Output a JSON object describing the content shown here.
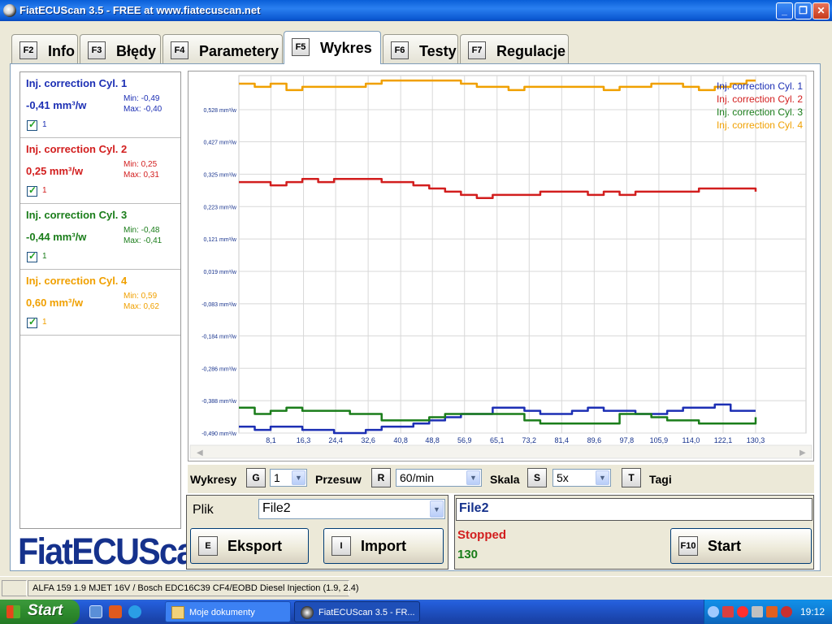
{
  "window": {
    "title": "FiatECUScan 3.5 - FREE at www.fiatecuscan.net",
    "controls": [
      "_",
      "❐",
      "✕"
    ]
  },
  "tabs": [
    {
      "key": "F2",
      "label": "Info",
      "active": false
    },
    {
      "key": "F3",
      "label": "Błędy",
      "active": false
    },
    {
      "key": "F4",
      "label": "Parametery",
      "active": false
    },
    {
      "key": "F5",
      "label": "Wykres",
      "active": true
    },
    {
      "key": "F6",
      "label": "Testy",
      "active": false
    },
    {
      "key": "F7",
      "label": "Regulacje",
      "active": false
    }
  ],
  "params": [
    {
      "name": "Inj. correction Cyl. 1",
      "value": "-0,41 mm³/w",
      "min": "Min: -0,49",
      "max": "Max: -0,40",
      "check": "1",
      "color": "#1c2fb4"
    },
    {
      "name": "Inj. correction Cyl. 2",
      "value": "0,25 mm³/w",
      "min": "Min: 0,25",
      "max": "Max: 0,31",
      "check": "1",
      "color": "#d21e1e"
    },
    {
      "name": "Inj. correction Cyl. 3",
      "value": "-0,44 mm³/w",
      "min": "Min: -0,48",
      "max": "Max: -0,41",
      "check": "1",
      "color": "#1a7d1a"
    },
    {
      "name": "Inj. correction Cyl. 4",
      "value": "0,60 mm³/w",
      "min": "Min: 0,59",
      "max": "Max: 0,62",
      "check": "1",
      "color": "#f0a000"
    }
  ],
  "logo_text": "FiatECUScan",
  "chart_data": {
    "type": "line",
    "y_ticks": [
      "0,528 mm³/w",
      "0,427 mm³/w",
      "0,325 mm³/w",
      "0,223 mm³/w",
      "0,121 mm³/w",
      "0,019 mm³/w",
      "-0,083 mm³/w",
      "-0,184 mm³/w",
      "-0,286 mm³/w",
      "-0,388 mm³/w",
      "-0,490 mm³/w"
    ],
    "y_tick_values": [
      0.528,
      0.427,
      0.325,
      0.223,
      0.121,
      0.019,
      -0.083,
      -0.184,
      -0.286,
      -0.388,
      -0.49
    ],
    "x_ticks": [
      "8,1",
      "16,3",
      "24,4",
      "32,6",
      "40,8",
      "48,8",
      "56,9",
      "65,1",
      "73,2",
      "81,4",
      "89,6",
      "97,8",
      "105,9",
      "114,0",
      "122,1",
      "130,3"
    ],
    "x_tick_values": [
      8.1,
      16.3,
      24.4,
      32.6,
      40.8,
      48.8,
      56.9,
      65.1,
      73.2,
      81.4,
      89.6,
      97.8,
      105.9,
      114.0,
      122.1,
      130.3
    ],
    "xlim": [
      0,
      130.3
    ],
    "ylim": [
      -0.49,
      0.61
    ],
    "grid": true,
    "legend_position": "top-right",
    "series": [
      {
        "name": "Inj. correction Cyl. 1",
        "color": "#1c2fb4",
        "x": [
          0,
          4,
          8,
          12,
          16,
          20,
          24,
          28,
          32,
          36,
          40,
          44,
          48,
          52,
          56,
          60,
          64,
          68,
          72,
          76,
          80,
          84,
          88,
          92,
          96,
          100,
          104,
          108,
          112,
          116,
          120,
          124,
          128,
          130.3
        ],
        "y": [
          -0.47,
          -0.48,
          -0.47,
          -0.47,
          -0.48,
          -0.48,
          -0.49,
          -0.49,
          -0.48,
          -0.47,
          -0.47,
          -0.46,
          -0.45,
          -0.44,
          -0.43,
          -0.43,
          -0.41,
          -0.41,
          -0.42,
          -0.43,
          -0.43,
          -0.42,
          -0.41,
          -0.42,
          -0.42,
          -0.43,
          -0.43,
          -0.42,
          -0.41,
          -0.41,
          -0.4,
          -0.42,
          -0.42,
          -0.42
        ]
      },
      {
        "name": "Inj. correction Cyl. 2",
        "color": "#d21e1e",
        "x": [
          0,
          4,
          8,
          12,
          16,
          20,
          24,
          28,
          32,
          36,
          40,
          44,
          48,
          52,
          56,
          60,
          64,
          68,
          72,
          76,
          80,
          84,
          88,
          92,
          96,
          100,
          104,
          108,
          112,
          116,
          120,
          124,
          128,
          130.3
        ],
        "y": [
          0.3,
          0.3,
          0.29,
          0.3,
          0.31,
          0.3,
          0.31,
          0.31,
          0.31,
          0.3,
          0.3,
          0.29,
          0.28,
          0.27,
          0.26,
          0.25,
          0.26,
          0.26,
          0.26,
          0.27,
          0.27,
          0.27,
          0.26,
          0.27,
          0.26,
          0.27,
          0.27,
          0.27,
          0.27,
          0.28,
          0.28,
          0.28,
          0.28,
          0.27
        ]
      },
      {
        "name": "Inj. correction Cyl. 3",
        "color": "#1a7d1a",
        "x": [
          0,
          4,
          8,
          12,
          16,
          20,
          24,
          28,
          32,
          36,
          40,
          44,
          48,
          52,
          56,
          60,
          64,
          68,
          72,
          76,
          80,
          84,
          88,
          92,
          96,
          100,
          104,
          108,
          112,
          116,
          120,
          124,
          128,
          130.3
        ],
        "y": [
          -0.41,
          -0.43,
          -0.42,
          -0.41,
          -0.42,
          -0.42,
          -0.42,
          -0.43,
          -0.43,
          -0.45,
          -0.45,
          -0.45,
          -0.44,
          -0.43,
          -0.43,
          -0.43,
          -0.43,
          -0.43,
          -0.45,
          -0.46,
          -0.46,
          -0.46,
          -0.46,
          -0.46,
          -0.43,
          -0.43,
          -0.44,
          -0.45,
          -0.45,
          -0.46,
          -0.46,
          -0.46,
          -0.46,
          -0.44
        ]
      },
      {
        "name": "Inj. correction Cyl. 4",
        "color": "#f0a000",
        "x": [
          0,
          4,
          8,
          12,
          16,
          20,
          24,
          28,
          32,
          36,
          40,
          44,
          48,
          52,
          56,
          60,
          64,
          68,
          72,
          76,
          80,
          84,
          88,
          92,
          96,
          100,
          104,
          108,
          112,
          116,
          120,
          124,
          128,
          130.3
        ],
        "y": [
          0.61,
          0.6,
          0.61,
          0.59,
          0.6,
          0.6,
          0.6,
          0.6,
          0.61,
          0.62,
          0.62,
          0.62,
          0.62,
          0.62,
          0.61,
          0.6,
          0.6,
          0.59,
          0.6,
          0.6,
          0.6,
          0.6,
          0.6,
          0.59,
          0.6,
          0.6,
          0.61,
          0.61,
          0.6,
          0.59,
          0.6,
          0.61,
          0.62,
          0.62
        ]
      }
    ]
  },
  "controls": {
    "wykresy_label": "Wykresy",
    "wykresy_key": "G",
    "wykresy_value": "1",
    "przesuw_label": "Przesuw",
    "przesuw_key": "R",
    "przesuw_value": "60/min",
    "skala_label": "Skala",
    "skala_key": "S",
    "skala_value": "5x",
    "tagi_key": "T",
    "tagi_label": "Tagi"
  },
  "file": {
    "label": "Plik",
    "value": "File2",
    "export_key": "E",
    "export_label": "Eksport",
    "import_key": "I",
    "import_label": "Import"
  },
  "status": {
    "file": "File2",
    "state": "Stopped",
    "count": "130",
    "start_key": "F10",
    "start_label": "Start"
  },
  "statusbar": {
    "vehicle": "ALFA 159 1.9 MJET 16V / Bosch EDC16C39 CF4/EOBD Diesel Injection (1.9, 2.4)"
  },
  "taskbar": {
    "start": "Start",
    "items": [
      "Moje dokumenty",
      "FiatECUScan 3.5 - FR..."
    ],
    "clock": "19:12"
  }
}
